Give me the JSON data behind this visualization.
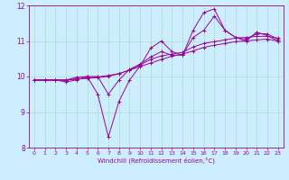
{
  "xlabel": "Windchill (Refroidissement éolien,°C)",
  "background_color": "#cceeff",
  "line_color": "#990099",
  "grid_color": "#aaddcc",
  "xlim": [
    -0.5,
    23.5
  ],
  "ylim": [
    8,
    12
  ],
  "yticks": [
    8,
    9,
    10,
    11,
    12
  ],
  "xticks": [
    0,
    1,
    2,
    3,
    4,
    5,
    6,
    7,
    8,
    9,
    10,
    11,
    12,
    13,
    14,
    15,
    16,
    17,
    18,
    19,
    20,
    21,
    22,
    23
  ],
  "series": [
    [
      9.9,
      9.9,
      9.9,
      9.85,
      9.9,
      10.0,
      9.5,
      8.3,
      9.3,
      9.9,
      10.3,
      10.8,
      11.0,
      10.7,
      10.6,
      11.3,
      11.8,
      11.9,
      11.3,
      11.1,
      11.0,
      11.25,
      11.15,
      11.0
    ],
    [
      9.9,
      9.9,
      9.9,
      9.9,
      9.93,
      9.95,
      9.97,
      10.0,
      10.08,
      10.18,
      10.28,
      10.38,
      10.48,
      10.57,
      10.63,
      10.72,
      10.82,
      10.88,
      10.93,
      10.98,
      11.0,
      11.03,
      11.05,
      11.0
    ],
    [
      9.9,
      9.9,
      9.9,
      9.9,
      9.93,
      9.96,
      9.99,
      10.03,
      10.08,
      10.18,
      10.33,
      10.48,
      10.58,
      10.63,
      10.68,
      10.83,
      10.93,
      10.98,
      11.03,
      11.08,
      11.1,
      11.13,
      11.13,
      11.08
    ],
    [
      9.9,
      9.9,
      9.9,
      9.9,
      9.98,
      10.0,
      10.0,
      9.5,
      9.9,
      10.2,
      10.35,
      10.55,
      10.7,
      10.6,
      10.6,
      11.1,
      11.3,
      11.7,
      11.3,
      11.1,
      11.05,
      11.2,
      11.2,
      11.05
    ]
  ]
}
